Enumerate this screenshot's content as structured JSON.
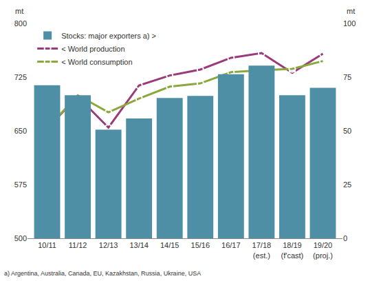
{
  "chart_data": {
    "type": "bar",
    "categories": [
      "10/11",
      "11/12",
      "12/13",
      "13/14",
      "14/15",
      "15/16",
      "16/17",
      "17/18 (est.)",
      "18/19 (f'cast)",
      "19/20 (proj.)"
    ],
    "series": [
      {
        "name": "Stocks: major exporters a) >",
        "type": "bar",
        "axis": "y2",
        "color": "#4f8fa6",
        "values": [
          71.2,
          66.6,
          50.6,
          55.8,
          65.3,
          66.3,
          76.4,
          80.4,
          66.6,
          70.0
        ]
      },
      {
        "name": "< World production",
        "type": "line",
        "axis": "y",
        "color": "#9b3a7a",
        "marker": "circle-open",
        "values": [
          653.7,
          697.8,
          654.6,
          713.5,
          727.3,
          735.6,
          752.0,
          758.6,
          731.0,
          757.7
        ]
      },
      {
        "name": "< World consumption",
        "type": "line",
        "axis": "y",
        "color": "#8aa83c",
        "marker": "circle-open",
        "values": [
          653.7,
          699.7,
          675.8,
          695.0,
          711.7,
          716.3,
          732.0,
          734.7,
          736.5,
          747.5
        ]
      }
    ],
    "y_label": "mt",
    "y2_label": "mt",
    "ylim": [
      500,
      800
    ],
    "yticks": [
      500,
      575,
      650,
      725,
      800
    ],
    "y2lim": [
      0,
      100
    ],
    "y2ticks": [
      0,
      25,
      50,
      75,
      100
    ],
    "grid": false,
    "legend": "top left",
    "note": "a) Argentina, Australia, Canada, EU, Kazakhstan, Russia, Ukraine, USA"
  }
}
